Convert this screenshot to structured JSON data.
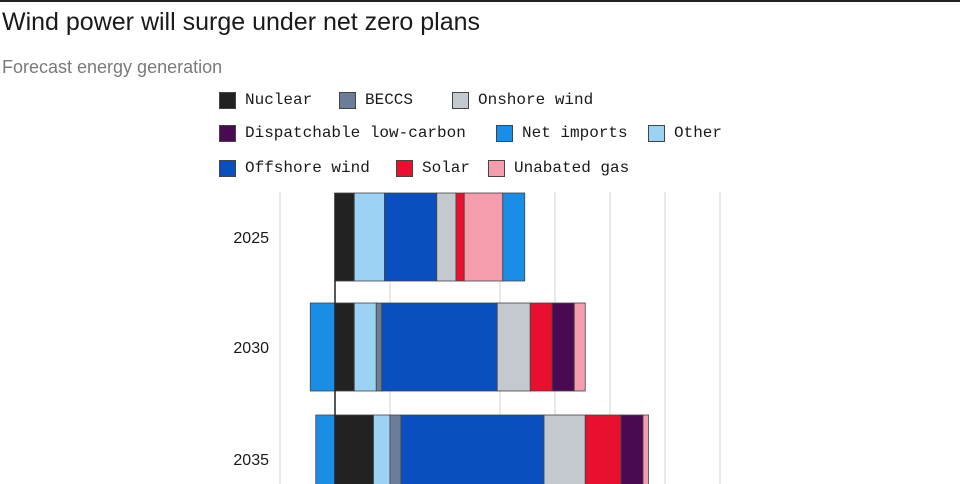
{
  "title": "Wind power will surge under net zero plans",
  "subtitle": "Forecast energy generation",
  "legend": [
    {
      "label": "Nuclear",
      "color": "#222222"
    },
    {
      "label": "BECCS",
      "color": "#6b7d99"
    },
    {
      "label": "Onshore wind",
      "color": "#c4c8cf"
    },
    {
      "label": "Dispatchable low-carbon",
      "color": "#4a0a52"
    },
    {
      "label": "Net imports",
      "color": "#1a8ee6"
    },
    {
      "label": "Other",
      "color": "#9cd3f5"
    },
    {
      "label": "Offshore wind",
      "color": "#0a4fbf"
    },
    {
      "label": "Solar",
      "color": "#e8102e"
    },
    {
      "label": "Unabated gas",
      "color": "#f59dac"
    }
  ],
  "chart_data": {
    "type": "bar",
    "orientation": "horizontal",
    "stacked": true,
    "categories": [
      "2025",
      "2030",
      "2035"
    ],
    "series_order_left_to_right": {
      "2025": [
        "Nuclear",
        "Other",
        "Offshore wind",
        "Onshore wind",
        "Solar",
        "Unabated gas",
        "Net imports"
      ],
      "2030": [
        "Net imports",
        "Nuclear",
        "Other",
        "BECCS",
        "Offshore wind",
        "Onshore wind",
        "Solar",
        "Dispatchable low-carbon",
        "Unabated gas"
      ],
      "2035": [
        "Net imports",
        "Nuclear",
        "Other",
        "BECCS",
        "Offshore wind",
        "Onshore wind",
        "Solar",
        "Dispatchable low-carbon",
        "Unabated gas"
      ]
    },
    "series": [
      {
        "name": "Net imports",
        "values": [
          8,
          -9,
          -7
        ]
      },
      {
        "name": "Nuclear",
        "values": [
          7,
          7,
          14
        ]
      },
      {
        "name": "Other",
        "values": [
          11,
          8,
          6
        ]
      },
      {
        "name": "BECCS",
        "values": [
          0,
          2,
          4
        ]
      },
      {
        "name": "Offshore wind",
        "values": [
          19,
          42,
          52
        ]
      },
      {
        "name": "Onshore wind",
        "values": [
          7,
          12,
          15
        ]
      },
      {
        "name": "Solar",
        "values": [
          3,
          8,
          13
        ]
      },
      {
        "name": "Dispatchable low-carbon",
        "values": [
          0,
          8,
          8
        ]
      },
      {
        "name": "Unabated gas",
        "values": [
          14,
          4,
          2
        ]
      }
    ],
    "baseline": 0,
    "grid": true,
    "legend_position": "top"
  }
}
